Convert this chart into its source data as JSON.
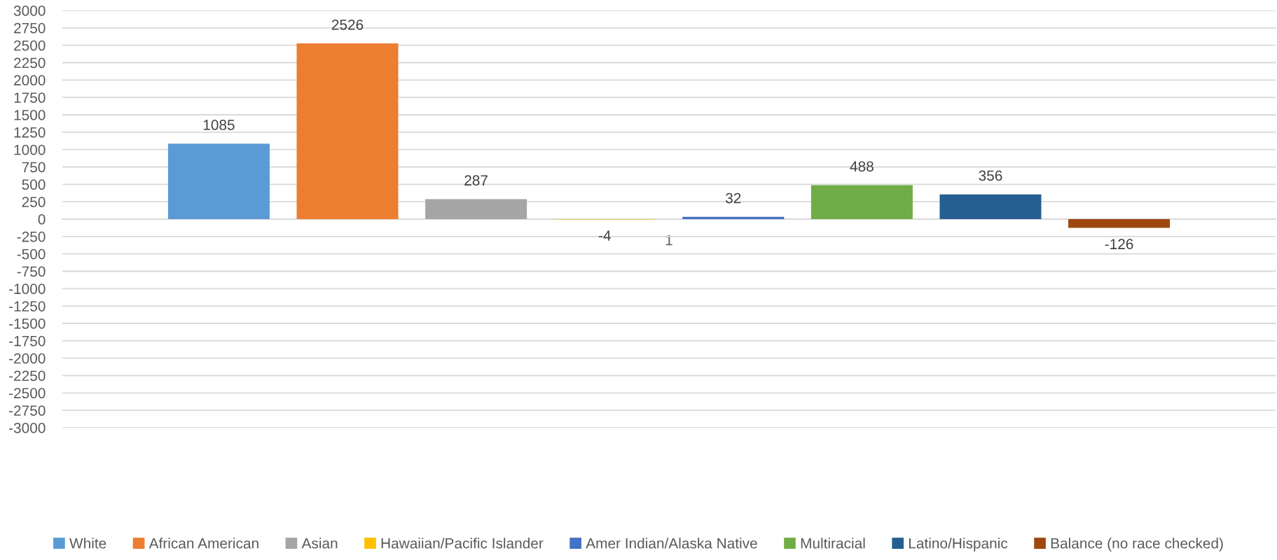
{
  "chart_data": {
    "type": "bar",
    "categories": [
      "1"
    ],
    "series": [
      {
        "name": "White",
        "color": "#5b9bd5",
        "values": [
          1085
        ]
      },
      {
        "name": "African American",
        "color": "#ed7d31",
        "values": [
          2526
        ]
      },
      {
        "name": "Asian",
        "color": "#a5a5a5",
        "values": [
          287
        ]
      },
      {
        "name": "Hawaiian/Pacific Islander",
        "color": "#ffc000",
        "values": [
          -4
        ]
      },
      {
        "name": "Amer Indian/Alaska Native",
        "color": "#4472c4",
        "values": [
          32
        ]
      },
      {
        "name": "Multiracial",
        "color": "#70ad47",
        "values": [
          488
        ]
      },
      {
        "name": "Latino/Hispanic",
        "color": "#255e91",
        "values": [
          356
        ]
      },
      {
        "name": "Balance (no race checked)",
        "color": "#9e480e",
        "values": [
          -126
        ]
      }
    ],
    "ylim": [
      -3000,
      3000
    ],
    "yticks": [
      -3000,
      -2750,
      -2500,
      -2250,
      -2000,
      -1750,
      -1500,
      -1250,
      -1000,
      -750,
      -500,
      -250,
      0,
      250,
      500,
      750,
      1000,
      1250,
      1500,
      1750,
      2000,
      2250,
      2500,
      2750,
      3000
    ],
    "grid": "y",
    "legend": "bottom",
    "data_labels": true
  }
}
